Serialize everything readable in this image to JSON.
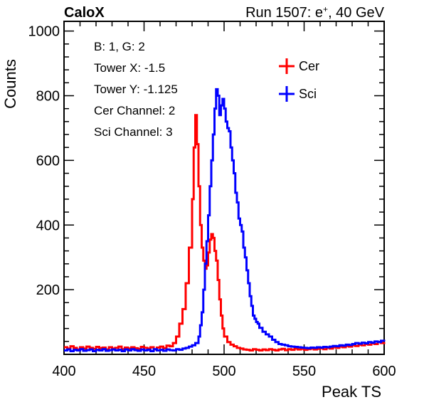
{
  "chart_data": {
    "type": "line",
    "title_left": "CaloX",
    "title_right": "Run 1507: e",
    "title_right_sup": "+",
    "title_right_end": ", 40 GeV",
    "xlabel": "Peak TS",
    "ylabel": "Counts",
    "xlim": [
      400,
      600
    ],
    "ylim": [
      0,
      1030
    ],
    "x_ticks": [
      400,
      450,
      500,
      550,
      600
    ],
    "y_ticks": [
      200,
      400,
      600,
      800,
      1000
    ],
    "info_lines": [
      "B: 1, G: 2",
      "Tower X: -1.5",
      "Tower Y: -1.125",
      "Cer Channel: 2",
      "Sci Channel: 3"
    ],
    "legend": {
      "position": "top-right"
    },
    "series": [
      {
        "name": "Cer",
        "color": "#ff0000",
        "points": [
          [
            400,
            22
          ],
          [
            402,
            18
          ],
          [
            404,
            25
          ],
          [
            406,
            20
          ],
          [
            408,
            15
          ],
          [
            410,
            22
          ],
          [
            412,
            18
          ],
          [
            414,
            24
          ],
          [
            416,
            20
          ],
          [
            418,
            17
          ],
          [
            420,
            23
          ],
          [
            422,
            19
          ],
          [
            424,
            21
          ],
          [
            426,
            15
          ],
          [
            428,
            22
          ],
          [
            430,
            18
          ],
          [
            432,
            20
          ],
          [
            434,
            24
          ],
          [
            436,
            16
          ],
          [
            438,
            21
          ],
          [
            440,
            18
          ],
          [
            442,
            22
          ],
          [
            444,
            19
          ],
          [
            446,
            17
          ],
          [
            448,
            23
          ],
          [
            450,
            20
          ],
          [
            452,
            18
          ],
          [
            454,
            22
          ],
          [
            456,
            15
          ],
          [
            458,
            21
          ],
          [
            460,
            24
          ],
          [
            462,
            19
          ],
          [
            464,
            27
          ],
          [
            466,
            25
          ],
          [
            468,
            35
          ],
          [
            470,
            55
          ],
          [
            472,
            95
          ],
          [
            474,
            140
          ],
          [
            476,
            220
          ],
          [
            478,
            330
          ],
          [
            480,
            480
          ],
          [
            481,
            640
          ],
          [
            482,
            740
          ],
          [
            483,
            650
          ],
          [
            484,
            520
          ],
          [
            485,
            400
          ],
          [
            486,
            330
          ],
          [
            487,
            290
          ],
          [
            488,
            265
          ],
          [
            489,
            275
          ],
          [
            490,
            315
          ],
          [
            491,
            355
          ],
          [
            492,
            372
          ],
          [
            493,
            360
          ],
          [
            494,
            320
          ],
          [
            495,
            290
          ],
          [
            496,
            230
          ],
          [
            497,
            170
          ],
          [
            498,
            120
          ],
          [
            499,
            80
          ],
          [
            500,
            55
          ],
          [
            502,
            38
          ],
          [
            504,
            30
          ],
          [
            506,
            25
          ],
          [
            508,
            20
          ],
          [
            510,
            18
          ],
          [
            512,
            15
          ],
          [
            514,
            14
          ],
          [
            516,
            12
          ],
          [
            518,
            16
          ],
          [
            520,
            14
          ],
          [
            522,
            12
          ],
          [
            524,
            15
          ],
          [
            526,
            13
          ],
          [
            528,
            16
          ],
          [
            530,
            14
          ],
          [
            532,
            12
          ],
          [
            534,
            15
          ],
          [
            536,
            17
          ],
          [
            538,
            13
          ],
          [
            540,
            16
          ],
          [
            542,
            14
          ],
          [
            544,
            18
          ],
          [
            546,
            15
          ],
          [
            548,
            17
          ],
          [
            550,
            14
          ],
          [
            552,
            16
          ],
          [
            554,
            18
          ],
          [
            556,
            15
          ],
          [
            558,
            17
          ],
          [
            560,
            19
          ],
          [
            562,
            16
          ],
          [
            564,
            20
          ],
          [
            566,
            18
          ],
          [
            568,
            22
          ],
          [
            570,
            20
          ],
          [
            572,
            24
          ],
          [
            574,
            22
          ],
          [
            576,
            26
          ],
          [
            578,
            24
          ],
          [
            580,
            28
          ],
          [
            582,
            26
          ],
          [
            584,
            30
          ],
          [
            586,
            28
          ],
          [
            588,
            32
          ],
          [
            590,
            30
          ],
          [
            592,
            34
          ],
          [
            594,
            32
          ],
          [
            596,
            38
          ],
          [
            598,
            35
          ],
          [
            600,
            38
          ]
        ]
      },
      {
        "name": "Sci",
        "color": "#0000ff",
        "points": [
          [
            400,
            12
          ],
          [
            402,
            15
          ],
          [
            404,
            10
          ],
          [
            406,
            14
          ],
          [
            408,
            12
          ],
          [
            410,
            16
          ],
          [
            412,
            11
          ],
          [
            414,
            13
          ],
          [
            416,
            15
          ],
          [
            418,
            10
          ],
          [
            420,
            14
          ],
          [
            422,
            12
          ],
          [
            424,
            16
          ],
          [
            426,
            11
          ],
          [
            428,
            13
          ],
          [
            430,
            15
          ],
          [
            432,
            12
          ],
          [
            434,
            14
          ],
          [
            436,
            10
          ],
          [
            438,
            15
          ],
          [
            440,
            12
          ],
          [
            442,
            16
          ],
          [
            444,
            13
          ],
          [
            446,
            11
          ],
          [
            448,
            15
          ],
          [
            450,
            12
          ],
          [
            452,
            14
          ],
          [
            454,
            10
          ],
          [
            456,
            16
          ],
          [
            458,
            12
          ],
          [
            460,
            14
          ],
          [
            462,
            11
          ],
          [
            464,
            15
          ],
          [
            466,
            13
          ],
          [
            468,
            12
          ],
          [
            470,
            16
          ],
          [
            472,
            14
          ],
          [
            474,
            18
          ],
          [
            476,
            20
          ],
          [
            478,
            24
          ],
          [
            480,
            28
          ],
          [
            482,
            35
          ],
          [
            484,
            55
          ],
          [
            485,
            90
          ],
          [
            486,
            130
          ],
          [
            487,
            200
          ],
          [
            488,
            280
          ],
          [
            489,
            350
          ],
          [
            490,
            430
          ],
          [
            491,
            520
          ],
          [
            492,
            600
          ],
          [
            493,
            680
          ],
          [
            494,
            760
          ],
          [
            495,
            820
          ],
          [
            496,
            800
          ],
          [
            497,
            740
          ],
          [
            498,
            770
          ],
          [
            499,
            790
          ],
          [
            500,
            760
          ],
          [
            501,
            720
          ],
          [
            502,
            700
          ],
          [
            503,
            690
          ],
          [
            504,
            640
          ],
          [
            505,
            600
          ],
          [
            506,
            560
          ],
          [
            507,
            500
          ],
          [
            508,
            470
          ],
          [
            509,
            420
          ],
          [
            510,
            400
          ],
          [
            511,
            380
          ],
          [
            512,
            330
          ],
          [
            513,
            300
          ],
          [
            514,
            260
          ],
          [
            515,
            220
          ],
          [
            516,
            180
          ],
          [
            517,
            150
          ],
          [
            518,
            120
          ],
          [
            519,
            110
          ],
          [
            520,
            100
          ],
          [
            521,
            95
          ],
          [
            522,
            82
          ],
          [
            524,
            70
          ],
          [
            526,
            62
          ],
          [
            528,
            55
          ],
          [
            530,
            45
          ],
          [
            532,
            38
          ],
          [
            534,
            32
          ],
          [
            536,
            30
          ],
          [
            538,
            28
          ],
          [
            540,
            25
          ],
          [
            542,
            24
          ],
          [
            544,
            23
          ],
          [
            546,
            22
          ],
          [
            548,
            21
          ],
          [
            550,
            20
          ],
          [
            552,
            19
          ],
          [
            554,
            21
          ],
          [
            556,
            20
          ],
          [
            558,
            22
          ],
          [
            560,
            21
          ],
          [
            562,
            23
          ],
          [
            564,
            22
          ],
          [
            566,
            24
          ],
          [
            568,
            26
          ],
          [
            570,
            25
          ],
          [
            572,
            28
          ],
          [
            574,
            27
          ],
          [
            576,
            30
          ],
          [
            578,
            29
          ],
          [
            580,
            32
          ],
          [
            582,
            35
          ],
          [
            584,
            33
          ],
          [
            586,
            36
          ],
          [
            588,
            34
          ],
          [
            590,
            38
          ],
          [
            592,
            36
          ],
          [
            594,
            40
          ],
          [
            596,
            38
          ],
          [
            598,
            42
          ],
          [
            600,
            40
          ]
        ]
      }
    ]
  }
}
